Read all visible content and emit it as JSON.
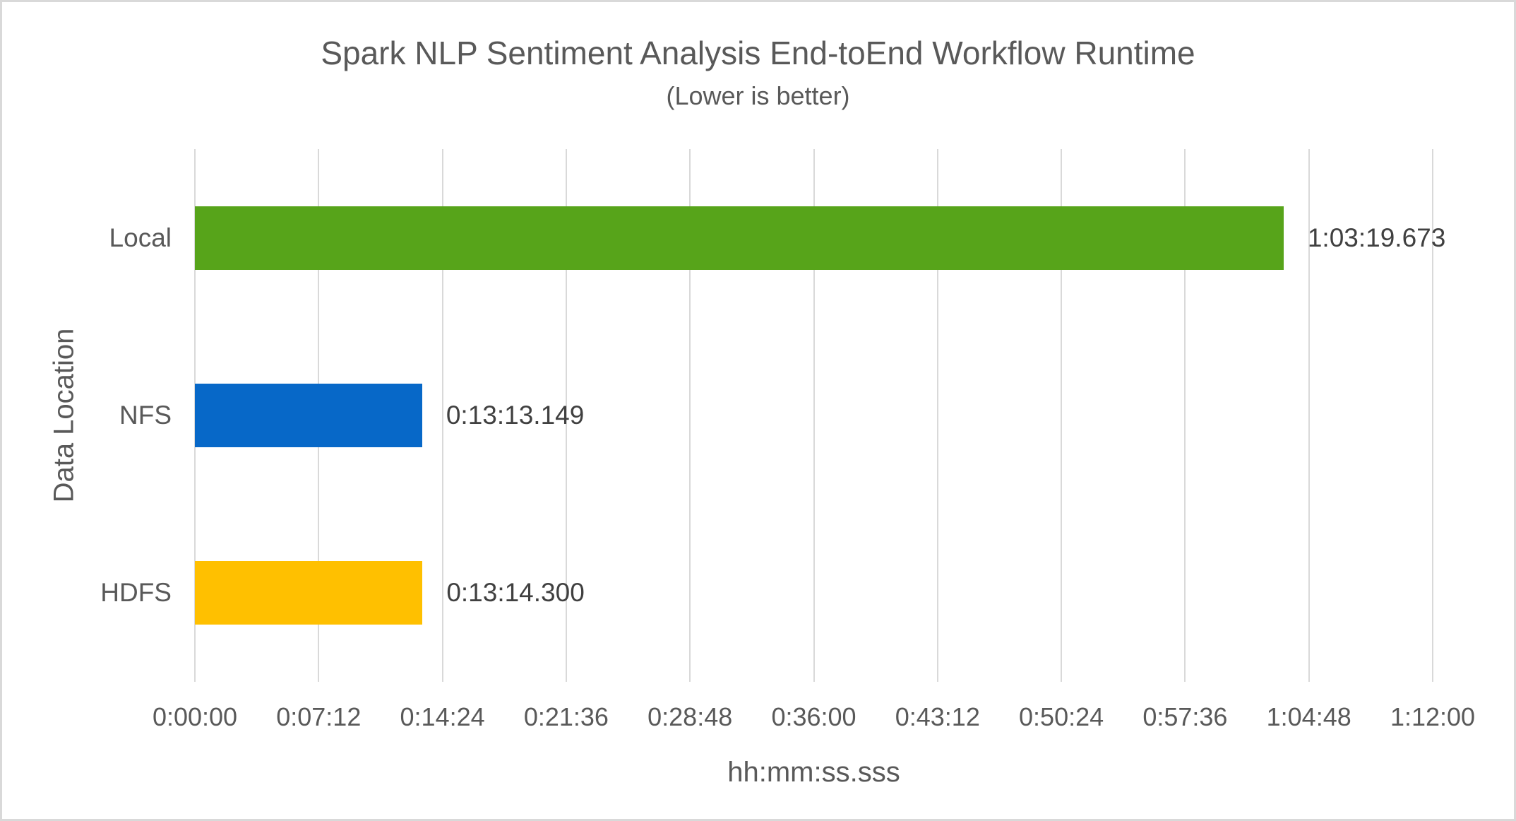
{
  "chart": {
    "title": "Spark NLP Sentiment Analysis End-toEnd Workflow Runtime",
    "subtitle": "(Lower is better)",
    "x_axis_title": "hh:mm:ss.sss",
    "y_axis_title": "Data Location"
  },
  "chart_data": {
    "type": "bar",
    "orientation": "horizontal",
    "title": "Spark NLP Sentiment Analysis End-toEnd Workflow Runtime",
    "subtitle": "(Lower is better)",
    "xlabel": "hh:mm:ss.sss",
    "ylabel": "Data Location",
    "categories": [
      "Local",
      "NFS",
      "HDFS"
    ],
    "series": [
      {
        "name": "Runtime",
        "values_seconds": [
          3799.673,
          793.149,
          794.3
        ],
        "value_labels": [
          "1:03:19.673",
          "0:13:13.149",
          "0:13:14.300"
        ]
      }
    ],
    "bar_colors": [
      "#57A41A",
      "#0768C8",
      "#FFC000"
    ],
    "xlim_seconds": [
      0,
      4320
    ],
    "x_tick_interval_seconds": 432,
    "x_ticks": [
      {
        "label": "0:00:00",
        "seconds": 0
      },
      {
        "label": "0:07:12",
        "seconds": 432
      },
      {
        "label": "0:14:24",
        "seconds": 864
      },
      {
        "label": "0:21:36",
        "seconds": 1296
      },
      {
        "label": "0:28:48",
        "seconds": 1728
      },
      {
        "label": "0:36:00",
        "seconds": 2160
      },
      {
        "label": "0:43:12",
        "seconds": 2592
      },
      {
        "label": "0:50:24",
        "seconds": 3024
      },
      {
        "label": "0:57:36",
        "seconds": 3456
      },
      {
        "label": "1:04:48",
        "seconds": 3888
      },
      {
        "label": "1:12:00",
        "seconds": 4320
      }
    ],
    "grid": true,
    "legend": false
  },
  "colors": {
    "background": "#FFFFFF",
    "border": "#D9D9D9",
    "gridline": "#D9D9D9",
    "axis_text": "#595959",
    "data_label_text": "#404040"
  }
}
